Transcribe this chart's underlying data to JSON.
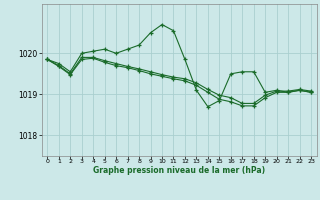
{
  "title": "Graphe pression niveau de la mer (hPa)",
  "bg_color": "#cce8e8",
  "grid_color": "#aacfcf",
  "line_color": "#1a6b2a",
  "xlim": [
    -0.5,
    23.5
  ],
  "ylim": [
    1017.5,
    1021.2
  ],
  "yticks": [
    1018,
    1019,
    1020
  ],
  "xticks": [
    0,
    1,
    2,
    3,
    4,
    5,
    6,
    7,
    8,
    9,
    10,
    11,
    12,
    13,
    14,
    15,
    16,
    17,
    18,
    19,
    20,
    21,
    22,
    23
  ],
  "series1_x": [
    0,
    1,
    2,
    3,
    4,
    5,
    6,
    7,
    8,
    9,
    10,
    11,
    12,
    13,
    14,
    15,
    16,
    17,
    18,
    19,
    20,
    21,
    22,
    23
  ],
  "series1_y": [
    1019.85,
    1019.75,
    1019.55,
    1020.0,
    1020.05,
    1020.1,
    1020.0,
    1020.1,
    1020.2,
    1020.5,
    1020.7,
    1020.55,
    1019.85,
    1019.1,
    1018.7,
    1018.85,
    1019.5,
    1019.55,
    1019.55,
    1019.05,
    1019.1,
    1019.05,
    1019.1,
    1019.05
  ],
  "series2_x": [
    0,
    1,
    2,
    3,
    4,
    5,
    6,
    7,
    8,
    9,
    10,
    11,
    12,
    13,
    14,
    15,
    16,
    17,
    18,
    19,
    20,
    21,
    22,
    23
  ],
  "series2_y": [
    1019.85,
    1019.7,
    1019.5,
    1019.9,
    1019.9,
    1019.82,
    1019.75,
    1019.68,
    1019.62,
    1019.55,
    1019.48,
    1019.42,
    1019.38,
    1019.28,
    1019.12,
    1018.98,
    1018.92,
    1018.78,
    1018.78,
    1018.98,
    1019.08,
    1019.08,
    1019.12,
    1019.08
  ],
  "series3_x": [
    0,
    1,
    2,
    3,
    4,
    5,
    6,
    7,
    8,
    9,
    10,
    11,
    12,
    13,
    14,
    15,
    16,
    17,
    18,
    19,
    20,
    21,
    22,
    23
  ],
  "series3_y": [
    1019.85,
    1019.68,
    1019.48,
    1019.85,
    1019.88,
    1019.78,
    1019.7,
    1019.65,
    1019.58,
    1019.5,
    1019.44,
    1019.38,
    1019.33,
    1019.22,
    1019.05,
    1018.88,
    1018.82,
    1018.72,
    1018.72,
    1018.92,
    1019.05,
    1019.05,
    1019.1,
    1019.05
  ]
}
